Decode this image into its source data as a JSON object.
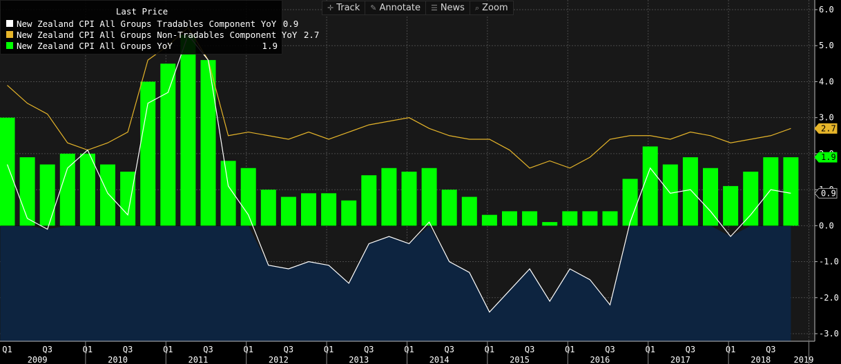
{
  "toolbar": {
    "items": [
      {
        "label": "Track",
        "icon": "crosshair-icon",
        "glyph": "✛"
      },
      {
        "label": "Annotate",
        "icon": "pencil-icon",
        "glyph": "✎"
      },
      {
        "label": "News",
        "icon": "news-icon",
        "glyph": "☰"
      },
      {
        "label": "Zoom",
        "icon": "zoom-icon",
        "glyph": "⌕"
      }
    ]
  },
  "legend": {
    "header": "Last Price",
    "entries": [
      {
        "label": "New Zealand CPI All Groups Tradables Component YoY",
        "value": "0.9",
        "color": "#ffffff"
      },
      {
        "label": "New Zealand CPI All Groups Non-Tradables Component YoY",
        "value": "2.7",
        "color": "#e6b52a"
      },
      {
        "label": "New Zealand CPI All Groups YoY",
        "value": "1.9",
        "color": "#00ff00"
      }
    ]
  },
  "chart_data": {
    "type": "bar",
    "x": [
      "2009 Q1",
      "2009 Q2",
      "2009 Q3",
      "2009 Q4",
      "2010 Q1",
      "2010 Q2",
      "2010 Q3",
      "2010 Q4",
      "2011 Q1",
      "2011 Q2",
      "2011 Q3",
      "2011 Q4",
      "2012 Q1",
      "2012 Q2",
      "2012 Q3",
      "2012 Q4",
      "2013 Q1",
      "2013 Q2",
      "2013 Q3",
      "2013 Q4",
      "2014 Q1",
      "2014 Q2",
      "2014 Q3",
      "2014 Q4",
      "2015 Q1",
      "2015 Q2",
      "2015 Q3",
      "2015 Q4",
      "2016 Q1",
      "2016 Q2",
      "2016 Q3",
      "2016 Q4",
      "2017 Q1",
      "2017 Q2",
      "2017 Q3",
      "2017 Q4",
      "2018 Q1",
      "2018 Q2",
      "2018 Q3",
      "2018 Q4"
    ],
    "series": [
      {
        "name": "New Zealand CPI All Groups YoY",
        "type": "bar",
        "color": "#00ff00",
        "values": [
          3.0,
          1.9,
          1.7,
          2.0,
          2.0,
          1.7,
          1.5,
          4.0,
          4.5,
          5.3,
          4.6,
          1.8,
          1.6,
          1.0,
          0.8,
          0.9,
          0.9,
          0.7,
          1.4,
          1.6,
          1.5,
          1.6,
          1.0,
          0.8,
          0.3,
          0.4,
          0.4,
          0.1,
          0.4,
          0.4,
          0.4,
          1.3,
          2.2,
          1.7,
          1.9,
          1.6,
          1.1,
          1.5,
          1.9,
          1.9
        ]
      },
      {
        "name": "New Zealand CPI All Groups Tradables Component YoY",
        "type": "line",
        "color": "#ffffff",
        "values": [
          1.7,
          0.2,
          -0.1,
          1.6,
          2.1,
          0.9,
          0.3,
          3.4,
          3.7,
          5.3,
          4.6,
          1.1,
          0.3,
          -1.1,
          -1.2,
          -1.0,
          -1.1,
          -1.6,
          -0.5,
          -0.3,
          -0.5,
          0.1,
          -1.0,
          -1.3,
          -2.4,
          -1.8,
          -1.2,
          -2.1,
          -1.2,
          -1.5,
          -2.2,
          0.1,
          1.6,
          0.9,
          1.0,
          0.4,
          -0.3,
          0.3,
          1.0,
          0.9
        ]
      },
      {
        "name": "New Zealand CPI All Groups Non-Tradables Component YoY",
        "type": "line",
        "color": "#e6b52a",
        "values": [
          3.9,
          3.4,
          3.1,
          2.3,
          2.1,
          2.3,
          2.6,
          4.6,
          5.0,
          5.5,
          4.6,
          2.5,
          2.6,
          2.5,
          2.4,
          2.6,
          2.4,
          2.6,
          2.8,
          2.9,
          3.0,
          2.7,
          2.5,
          2.4,
          2.4,
          2.1,
          1.6,
          1.8,
          1.6,
          1.9,
          2.4,
          2.5,
          2.5,
          2.4,
          2.6,
          2.5,
          2.3,
          2.4,
          2.5,
          2.7
        ]
      }
    ],
    "ylim": [
      -3.0,
      6.0
    ],
    "y_ticks": [
      -3.0,
      -2.0,
      -1.0,
      0.0,
      1.0,
      2.0,
      3.0,
      4.0,
      5.0,
      6.0
    ],
    "y_axis_side": "right",
    "x_quarter_ticks": [
      "Q1",
      "Q3",
      "Q1",
      "Q3",
      "Q1",
      "Q3",
      "Q1",
      "Q3",
      "Q1",
      "Q3",
      "Q1",
      "Q3",
      "Q1",
      "Q3",
      "Q1",
      "Q3",
      "Q1",
      "Q3",
      "Q1",
      "Q3"
    ],
    "x_years": [
      "2009",
      "2010",
      "2011",
      "2012",
      "2013",
      "2014",
      "2015",
      "2016",
      "2017",
      "2018",
      "2019"
    ],
    "last_value_tags": [
      {
        "value": 2.7,
        "text": "2.7",
        "bg": "#e6b52a",
        "fg": "#000000"
      },
      {
        "value": 1.9,
        "text": "1.9",
        "bg": "#00ff00",
        "fg": "#000000"
      },
      {
        "value": 0.9,
        "text": "0.9",
        "bg": "#000000",
        "fg": "#ffffff"
      }
    ],
    "grid": true,
    "background": "#181818",
    "negative_area_color": "#0d2440"
  }
}
